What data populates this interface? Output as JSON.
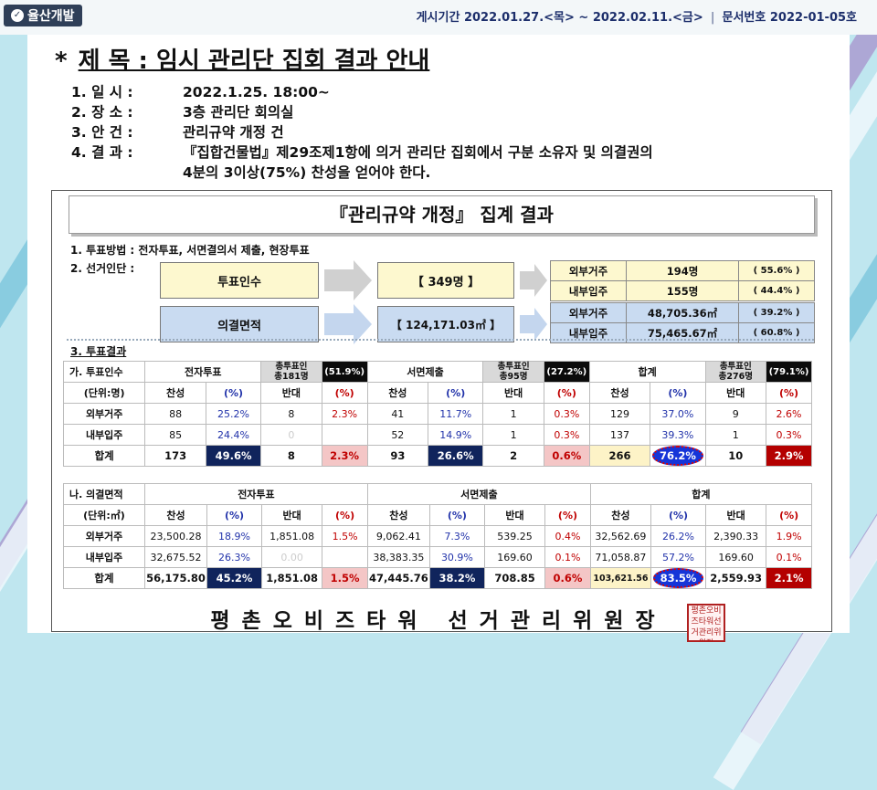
{
  "header": {
    "logo": "율산개발",
    "period": "게시기간 2022.01.27.<목> ~ 2022.02.11.<금>",
    "doc_no": "문서번호 2022-01-05호"
  },
  "title": {
    "star": "*",
    "text": "제  목 : 임시 관리단 집회 결과 안내"
  },
  "info": [
    {
      "label": "1.  일  시 :",
      "value": "2022.1.25.  18:00~"
    },
    {
      "label": "2.  장  소 :",
      "value": "3층 관리단 회의실"
    },
    {
      "label": "3.  안  건 :",
      "value": "관리규약 개정 건"
    },
    {
      "label": "4.  결  과 :",
      "value": "『집합건물법』제29조제1항에 의거 관리단 집회에서 구분 소유자 및 의결권의"
    }
  ],
  "info_cont": "4분의 3이상(75%) 찬성을 얻어야 한다.",
  "banner": "『관리규약 개정』  집계 결과",
  "section1": "1. 투표방법 : 전자투표, 서면결의서 제출, 현장투표",
  "section2": "2. 선거인단 :",
  "voters": {
    "count_label": "투표인수",
    "count_value": "【 349명 】",
    "count_rows": [
      {
        "label": "외부거주",
        "value": "194명",
        "pct": "( 55.6% )"
      },
      {
        "label": "내부입주",
        "value": "155명",
        "pct": "( 44.4% )"
      }
    ],
    "area_label": "의결면적",
    "area_value": "【 124,171.03㎡ 】",
    "area_rows": [
      {
        "label": "외부거주",
        "value": "48,705.36㎡",
        "pct": "( 39.2% )"
      },
      {
        "label": "내부입주",
        "value": "75,465.67㎡",
        "pct": "( 60.8% )"
      }
    ]
  },
  "section3": "3. 투표결과",
  "tableA": {
    "side_title": "가. 투표인수",
    "side_arrow": "→",
    "side_unit": "(단위:명)",
    "groups": [
      {
        "name": "전자투표",
        "sub": "총투표인\n총181명",
        "badge": "(51.9%)"
      },
      {
        "name": "서면제출",
        "sub": "총투표인\n총95명",
        "badge": "(27.2%)"
      },
      {
        "name": "합계",
        "sub": "총투표인\n총276명",
        "badge": "(79.1%)"
      }
    ],
    "cols": [
      "찬성",
      "(%)",
      "반대",
      "(%)"
    ],
    "rows": [
      {
        "label": "외부거주",
        "cells": [
          "88",
          "25.2%",
          "8",
          "2.3%",
          "41",
          "11.7%",
          "1",
          "0.3%",
          "129",
          "37.0%",
          "9",
          "2.6%"
        ]
      },
      {
        "label": "내부입주",
        "cells": [
          "85",
          "24.4%",
          "0",
          "",
          "52",
          "14.9%",
          "1",
          "0.3%",
          "137",
          "39.3%",
          "1",
          "0.3%"
        ]
      },
      {
        "label": "합계",
        "cells": [
          "173",
          "49.6%",
          "8",
          "2.3%",
          "93",
          "26.6%",
          "2",
          "0.6%",
          "266",
          "76.2%",
          "10",
          "2.9%"
        ]
      }
    ]
  },
  "tableB": {
    "side_title": "나. 의결면적",
    "side_arrow": "→",
    "side_unit": "(단위:㎡)",
    "groups": [
      "전자투표",
      "서면제출",
      "합계"
    ],
    "cols": [
      "찬성",
      "(%)",
      "반대",
      "(%)"
    ],
    "rows": [
      {
        "label": "외부거주",
        "cells": [
          "23,500.28",
          "18.9%",
          "1,851.08",
          "1.5%",
          "9,062.41",
          "7.3%",
          "539.25",
          "0.4%",
          "32,562.69",
          "26.2%",
          "2,390.33",
          "1.9%"
        ]
      },
      {
        "label": "내부입주",
        "cells": [
          "32,675.52",
          "26.3%",
          "0.00",
          "",
          "38,383.35",
          "30.9%",
          "169.60",
          "0.1%",
          "71,058.87",
          "57.2%",
          "169.60",
          "0.1%"
        ]
      },
      {
        "label": "합계",
        "cells": [
          "56,175.80",
          "45.2%",
          "1,851.08",
          "1.5%",
          "47,445.76",
          "38.2%",
          "708.85",
          "0.6%",
          "103,621.56",
          "83.5%",
          "2,559.93",
          "2.1%"
        ]
      }
    ]
  },
  "footer": "평촌오비즈타워 선거관리위원장",
  "seal": "평촌오비즈타워선거관리위원장"
}
